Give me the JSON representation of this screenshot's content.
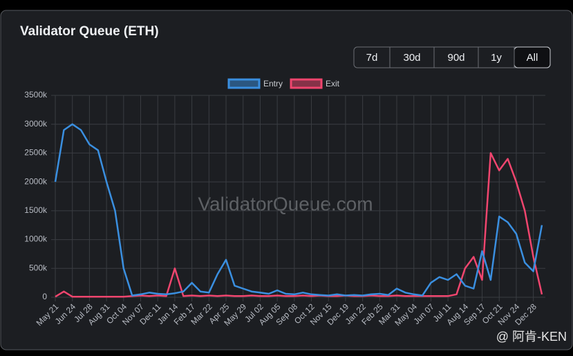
{
  "chart_data": {
    "type": "line",
    "title": "Validator Queue (ETH)",
    "ranges": [
      "7d",
      "30d",
      "90d",
      "1y",
      "All"
    ],
    "selected_range": "All",
    "watermark": "ValidatorQueue.com",
    "credit": "@ 阿肯-KEN",
    "categories": [
      "May 21",
      null,
      "Jun 24",
      null,
      "Jul 28",
      null,
      "Aug 31",
      null,
      "Oct 04",
      null,
      "Nov 07",
      null,
      "Dec 11",
      null,
      "Jan 14",
      null,
      "Feb 17",
      null,
      "Mar 22",
      null,
      "Apr 25",
      null,
      "May 29",
      null,
      "Jul 02",
      null,
      "Aug 05",
      null,
      "Sep 08",
      null,
      "Oct 12",
      null,
      "Nov 15",
      null,
      "Dec 19",
      null,
      "Jan 22",
      null,
      "Feb 25",
      null,
      "Mar 31",
      null,
      "May 04",
      null,
      "Jun 07",
      null,
      "Jul 11",
      null,
      "Aug 14",
      null,
      "Sep 17",
      null,
      "Oct 21",
      null,
      "Nov 24",
      null,
      "Dec 28",
      null
    ],
    "series": [
      {
        "name": "Entry",
        "color": "#3a8fe0",
        "values": [
          2000000,
          2900000,
          3000000,
          2900000,
          2650000,
          2550000,
          2000000,
          1500000,
          500000,
          30000,
          50000,
          80000,
          60000,
          50000,
          70000,
          100000,
          250000,
          100000,
          80000,
          400000,
          650000,
          200000,
          150000,
          100000,
          80000,
          60000,
          120000,
          60000,
          50000,
          80000,
          50000,
          40000,
          30000,
          50000,
          30000,
          40000,
          30000,
          50000,
          60000,
          40000,
          150000,
          80000,
          50000,
          30000,
          250000,
          350000,
          300000,
          400000,
          200000,
          150000,
          800000,
          300000,
          1400000,
          1300000,
          1100000,
          600000,
          450000,
          1250000
        ]
      },
      {
        "name": "Exit",
        "color": "#f0456e",
        "values": [
          10000,
          100000,
          10000,
          10000,
          10000,
          10000,
          10000,
          10000,
          10000,
          20000,
          30000,
          20000,
          30000,
          20000,
          500000,
          20000,
          30000,
          20000,
          30000,
          20000,
          30000,
          20000,
          20000,
          30000,
          20000,
          20000,
          30000,
          20000,
          20000,
          30000,
          20000,
          30000,
          20000,
          20000,
          30000,
          20000,
          20000,
          30000,
          20000,
          20000,
          30000,
          20000,
          20000,
          20000,
          20000,
          20000,
          20000,
          50000,
          500000,
          700000,
          300000,
          2500000,
          2200000,
          2400000,
          2000000,
          1500000,
          700000,
          50000
        ]
      }
    ],
    "ylim": [
      0,
      3500000
    ],
    "yticks": [
      0,
      {
        "value": 500000,
        "label": "500k"
      },
      {
        "value": 1000000,
        "label": "1000k"
      },
      {
        "value": 1500000,
        "label": "1500k"
      },
      {
        "value": 2000000,
        "label": "2000k"
      },
      {
        "value": 2500000,
        "label": "2500k"
      },
      {
        "value": 3000000,
        "label": "3000k"
      },
      {
        "value": 3500000,
        "label": "3500k"
      }
    ],
    "grid": true
  }
}
